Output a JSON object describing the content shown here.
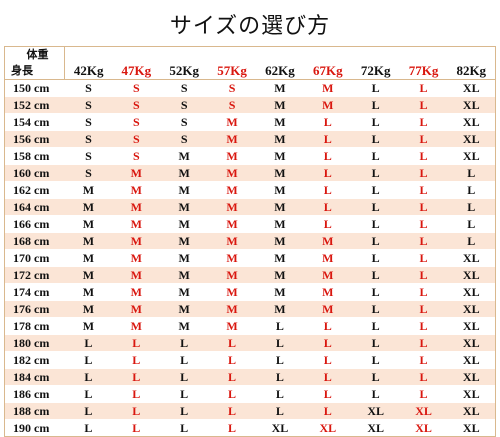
{
  "title": "サイズの選び方",
  "corner": {
    "weight_label": "体重",
    "height_label": "身長"
  },
  "weights": [
    "42Kg",
    "47Kg",
    "52Kg",
    "57Kg",
    "62Kg",
    "67Kg",
    "72Kg",
    "77Kg",
    "82Kg"
  ],
  "red_columns": [
    1,
    3,
    5,
    7
  ],
  "highlight_color": "#d9170f",
  "stripe_color": "#fbe5d6",
  "rows": [
    {
      "height": "150 cm",
      "sizes": [
        "S",
        "S",
        "S",
        "S",
        "M",
        "M",
        "L",
        "L",
        "XL"
      ]
    },
    {
      "height": "152 cm",
      "sizes": [
        "S",
        "S",
        "S",
        "S",
        "M",
        "M",
        "L",
        "L",
        "XL"
      ]
    },
    {
      "height": "154 cm",
      "sizes": [
        "S",
        "S",
        "S",
        "M",
        "M",
        "L",
        "L",
        "L",
        "XL"
      ]
    },
    {
      "height": "156 cm",
      "sizes": [
        "S",
        "S",
        "S",
        "M",
        "M",
        "L",
        "L",
        "L",
        "XL"
      ]
    },
    {
      "height": "158 cm",
      "sizes": [
        "S",
        "S",
        "M",
        "M",
        "M",
        "L",
        "L",
        "L",
        "XL"
      ]
    },
    {
      "height": "160 cm",
      "sizes": [
        "S",
        "M",
        "M",
        "M",
        "M",
        "L",
        "L",
        "L",
        "L"
      ]
    },
    {
      "height": "162 cm",
      "sizes": [
        "M",
        "M",
        "M",
        "M",
        "M",
        "L",
        "L",
        "L",
        "L"
      ]
    },
    {
      "height": "164 cm",
      "sizes": [
        "M",
        "M",
        "M",
        "M",
        "M",
        "L",
        "L",
        "L",
        "L"
      ]
    },
    {
      "height": "166 cm",
      "sizes": [
        "M",
        "M",
        "M",
        "M",
        "M",
        "L",
        "L",
        "L",
        "L"
      ]
    },
    {
      "height": "168 cm",
      "sizes": [
        "M",
        "M",
        "M",
        "M",
        "M",
        "M",
        "L",
        "L",
        "L"
      ]
    },
    {
      "height": "170 cm",
      "sizes": [
        "M",
        "M",
        "M",
        "M",
        "M",
        "M",
        "L",
        "L",
        "XL"
      ]
    },
    {
      "height": "172 cm",
      "sizes": [
        "M",
        "M",
        "M",
        "M",
        "M",
        "M",
        "L",
        "L",
        "XL"
      ]
    },
    {
      "height": "174 cm",
      "sizes": [
        "M",
        "M",
        "M",
        "M",
        "M",
        "M",
        "L",
        "L",
        "XL"
      ]
    },
    {
      "height": "176 cm",
      "sizes": [
        "M",
        "M",
        "M",
        "M",
        "M",
        "M",
        "L",
        "L",
        "XL"
      ]
    },
    {
      "height": "178 cm",
      "sizes": [
        "M",
        "M",
        "M",
        "M",
        "L",
        "L",
        "L",
        "L",
        "XL"
      ]
    },
    {
      "height": "180 cm",
      "sizes": [
        "L",
        "L",
        "L",
        "L",
        "L",
        "L",
        "L",
        "L",
        "XL"
      ]
    },
    {
      "height": "182 cm",
      "sizes": [
        "L",
        "L",
        "L",
        "L",
        "L",
        "L",
        "L",
        "L",
        "XL"
      ]
    },
    {
      "height": "184 cm",
      "sizes": [
        "L",
        "L",
        "L",
        "L",
        "L",
        "L",
        "L",
        "L",
        "XL"
      ]
    },
    {
      "height": "186 cm",
      "sizes": [
        "L",
        "L",
        "L",
        "L",
        "L",
        "L",
        "L",
        "L",
        "XL"
      ]
    },
    {
      "height": "188 cm",
      "sizes": [
        "L",
        "L",
        "L",
        "L",
        "L",
        "L",
        "XL",
        "XL",
        "XL"
      ]
    },
    {
      "height": "190 cm",
      "sizes": [
        "L",
        "L",
        "L",
        "L",
        "XL",
        "XL",
        "XL",
        "XL",
        "XL"
      ]
    }
  ]
}
